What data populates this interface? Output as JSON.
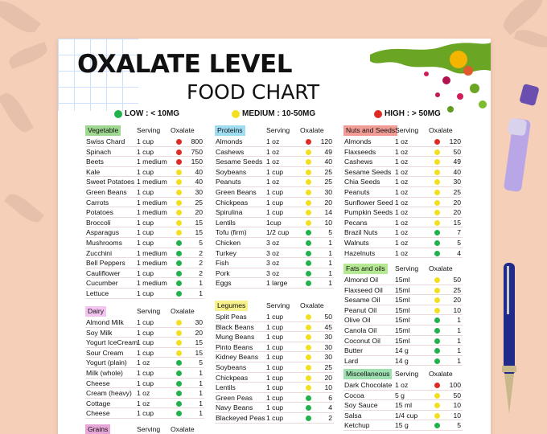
{
  "title": {
    "line1": "OXALATE LEVEL",
    "line2": "FOOD CHART"
  },
  "legend": [
    {
      "label": "LOW : < 10MG",
      "color": "#22b24c"
    },
    {
      "label": "MEDIUM : 10-50MG",
      "color": "#f2e020"
    },
    {
      "label": "HIGH : > 50MG",
      "color": "#e02a24"
    }
  ],
  "colors": {
    "low": "#22b24c",
    "medium": "#f2e020",
    "high": "#e02a24"
  },
  "sections": [
    {
      "id": "vegetable",
      "category": "Vegetable",
      "cat_color": "#9fd890",
      "serving_label": "Serving",
      "oxalate_label": "Oxalate",
      "rows": [
        {
          "name": "Swiss Chard",
          "serving": "1 cup",
          "value": "800",
          "level": "high"
        },
        {
          "name": "Spinach",
          "serving": "1 cup",
          "value": "750",
          "level": "high"
        },
        {
          "name": "Beets",
          "serving": "1 medium",
          "value": "150",
          "level": "high"
        },
        {
          "name": "Kale",
          "serving": "1 cup",
          "value": "40",
          "level": "medium"
        },
        {
          "name": "Sweet Potatoes",
          "serving": "1 medium",
          "value": "40",
          "level": "medium"
        },
        {
          "name": "Green Beans",
          "serving": "1 cup",
          "value": "30",
          "level": "medium"
        },
        {
          "name": "Carrots",
          "serving": "1 medium",
          "value": "25",
          "level": "medium"
        },
        {
          "name": "Potatoes",
          "serving": "1 medium",
          "value": "20",
          "level": "medium"
        },
        {
          "name": "Broccoli",
          "serving": "1 cup",
          "value": "15",
          "level": "medium"
        },
        {
          "name": "Asparagus",
          "serving": "1 cup",
          "value": "15",
          "level": "medium"
        },
        {
          "name": "Mushrooms",
          "serving": "1 cup",
          "value": "5",
          "level": "low"
        },
        {
          "name": "Zucchini",
          "serving": "1 medium",
          "value": "2",
          "level": "low"
        },
        {
          "name": "Bell Peppers",
          "serving": "1 medium",
          "value": "2",
          "level": "low"
        },
        {
          "name": "Cauliflower",
          "serving": "1 cup",
          "value": "2",
          "level": "low"
        },
        {
          "name": "Cucumber",
          "serving": "1 medium",
          "value": "1",
          "level": "low"
        },
        {
          "name": "Lettuce",
          "serving": "1 cup",
          "value": "1",
          "level": "low"
        }
      ]
    },
    {
      "id": "dairy",
      "category": "Dairy",
      "cat_color": "#f3c4f0",
      "serving_label": "Serving",
      "oxalate_label": "Oxalate",
      "rows": [
        {
          "name": "Almond Milk",
          "serving": "1 cup",
          "value": "30",
          "level": "medium"
        },
        {
          "name": "Soy Milk",
          "serving": "1 cup",
          "value": "20",
          "level": "medium"
        },
        {
          "name": "Yogurt IceCream",
          "serving": "1 cup",
          "value": "15",
          "level": "medium"
        },
        {
          "name": "Sour Cream",
          "serving": "1 cup",
          "value": "15",
          "level": "medium"
        },
        {
          "name": "Yogurt (plain)",
          "serving": "1 oz",
          "value": "5",
          "level": "low"
        },
        {
          "name": "Milk (whole)",
          "serving": "1 cup",
          "value": "1",
          "level": "low"
        },
        {
          "name": "Cheese",
          "serving": "1 cup",
          "value": "1",
          "level": "low"
        },
        {
          "name": "Cream (heavy)",
          "serving": "1 oz",
          "value": "1",
          "level": "low"
        },
        {
          "name": "Cottage",
          "serving": "1 oz",
          "value": "1",
          "level": "low"
        },
        {
          "name": "Cheese",
          "serving": "1 cup",
          "value": "1",
          "level": "low"
        }
      ]
    },
    {
      "id": "grains",
      "category": "Grains",
      "cat_color": "#e7a6d8",
      "serving_label": "Serving",
      "oxalate_label": "Oxalate",
      "rows": []
    },
    {
      "id": "proteins",
      "category": "Proteins",
      "cat_color": "#9fdcf2",
      "serving_label": "Serving",
      "oxalate_label": "Oxalate",
      "rows": [
        {
          "name": "Almonds",
          "serving": "1 oz",
          "value": "120",
          "level": "high"
        },
        {
          "name": "Cashews",
          "serving": "1 oz",
          "value": "49",
          "level": "medium"
        },
        {
          "name": "Sesame Seeds",
          "serving": "1 oz",
          "value": "40",
          "level": "medium"
        },
        {
          "name": "Soybeans",
          "serving": "1 cup",
          "value": "25",
          "level": "medium"
        },
        {
          "name": "Peanuts",
          "serving": "1 oz",
          "value": "25",
          "level": "medium"
        },
        {
          "name": "Green Beans",
          "serving": "1 cup",
          "value": "30",
          "level": "medium"
        },
        {
          "name": "Chickpeas",
          "serving": "1 cup",
          "value": "20",
          "level": "medium"
        },
        {
          "name": "Spirulina",
          "serving": "1 cup",
          "value": "14",
          "level": "medium"
        },
        {
          "name": "Lentils",
          "serving": "1cup",
          "value": "10",
          "level": "medium"
        },
        {
          "name": "Tofu (firm)",
          "serving": "1/2 cup",
          "value": "5",
          "level": "low"
        },
        {
          "name": "Chicken",
          "serving": "3 oz",
          "value": "1",
          "level": "low"
        },
        {
          "name": "Turkey",
          "serving": "3 oz",
          "value": "1",
          "level": "low"
        },
        {
          "name": "Fish",
          "serving": "3 oz",
          "value": "1",
          "level": "low"
        },
        {
          "name": "Pork",
          "serving": "3 oz",
          "value": "1",
          "level": "low"
        },
        {
          "name": "Eggs",
          "serving": "1 large",
          "value": "1",
          "level": "low"
        }
      ]
    },
    {
      "id": "legumes",
      "category": "Legumes",
      "cat_color": "#f8f08a",
      "serving_label": "Serving",
      "oxalate_label": "Oxalate",
      "rows": [
        {
          "name": "Split Peas",
          "serving": "1 cup",
          "value": "50",
          "level": "medium"
        },
        {
          "name": "Black Beans",
          "serving": "1 cup",
          "value": "45",
          "level": "medium"
        },
        {
          "name": "Mung Beans",
          "serving": "1 cup",
          "value": "30",
          "level": "medium"
        },
        {
          "name": "Pinto Beans",
          "serving": "1 cup",
          "value": "30",
          "level": "medium"
        },
        {
          "name": "Kidney Beans",
          "serving": "1 cup",
          "value": "30",
          "level": "medium"
        },
        {
          "name": "Soybeans",
          "serving": "1 cup",
          "value": "25",
          "level": "medium"
        },
        {
          "name": "Chickpeas",
          "serving": "1 cup",
          "value": "20",
          "level": "medium"
        },
        {
          "name": "Lentils",
          "serving": "1 cup",
          "value": "10",
          "level": "medium"
        },
        {
          "name": "Green Peas",
          "serving": "1 cup",
          "value": "6",
          "level": "low"
        },
        {
          "name": "Navy Beans",
          "serving": "1 cup",
          "value": "4",
          "level": "low"
        },
        {
          "name": "Blackeyed Peas",
          "serving": "1 cup",
          "value": "2",
          "level": "low"
        }
      ]
    },
    {
      "id": "nuts",
      "category": "Nuts and Seeds",
      "cat_color": "#f29c96",
      "serving_label": "Serving",
      "oxalate_label": "Oxalate",
      "rows": [
        {
          "name": "Almonds",
          "serving": "1 oz",
          "value": "120",
          "level": "high"
        },
        {
          "name": "Flaxseeds",
          "serving": "1 oz",
          "value": "50",
          "level": "medium"
        },
        {
          "name": "Cashews",
          "serving": "1 oz",
          "value": "49",
          "level": "medium"
        },
        {
          "name": "Sesame Seeds",
          "serving": "1 oz",
          "value": "40",
          "level": "medium"
        },
        {
          "name": "Chia Seeds",
          "serving": "1 oz",
          "value": "30",
          "level": "medium"
        },
        {
          "name": "Peanuts",
          "serving": "1 oz",
          "value": "25",
          "level": "medium"
        },
        {
          "name": "Sunflower Seed",
          "serving": "1 oz",
          "value": "20",
          "level": "medium"
        },
        {
          "name": "Pumpkin Seeds",
          "serving": "1 oz",
          "value": "20",
          "level": "medium"
        },
        {
          "name": "Pecans",
          "serving": "1 oz",
          "value": "15",
          "level": "medium"
        },
        {
          "name": "Brazil Nuts",
          "serving": "1 oz",
          "value": "7",
          "level": "low"
        },
        {
          "name": "Walnuts",
          "serving": "1 oz",
          "value": "5",
          "level": "low"
        },
        {
          "name": "Hazelnuts",
          "serving": "1 oz",
          "value": "4",
          "level": "low"
        }
      ]
    },
    {
      "id": "fats",
      "category": "Fats and oils",
      "cat_color": "#b4e892",
      "serving_label": "Serving",
      "oxalate_label": "Oxalate",
      "rows": [
        {
          "name": "Almond Oil",
          "serving": "15ml",
          "value": "50",
          "level": "medium"
        },
        {
          "name": "Flaxseed Oil",
          "serving": "15ml",
          "value": "25",
          "level": "medium"
        },
        {
          "name": "Sesame Oil",
          "serving": "15ml",
          "value": "20",
          "level": "medium"
        },
        {
          "name": "Peanut Oil",
          "serving": "15ml",
          "value": "10",
          "level": "medium"
        },
        {
          "name": "Olive Oil",
          "serving": "15ml",
          "value": "1",
          "level": "low"
        },
        {
          "name": "Canola Oil",
          "serving": "15ml",
          "value": "1",
          "level": "low"
        },
        {
          "name": "Coconut Oil",
          "serving": "15ml",
          "value": "1",
          "level": "low"
        },
        {
          "name": "Butter",
          "serving": "14 g",
          "value": "1",
          "level": "low"
        },
        {
          "name": "Lard",
          "serving": "14 g",
          "value": "1",
          "level": "low"
        }
      ]
    },
    {
      "id": "misc",
      "category": "Miscellaneous",
      "cat_color": "#9fe0b0",
      "serving_label": "Serving",
      "oxalate_label": "Oxalate",
      "rows": [
        {
          "name": "Dark Chocolate",
          "serving": "1 oz",
          "value": "100",
          "level": "high"
        },
        {
          "name": "Cocoa",
          "serving": "5 g",
          "value": "50",
          "level": "medium"
        },
        {
          "name": "Soy Sauce",
          "serving": "15 ml",
          "value": "10",
          "level": "medium"
        },
        {
          "name": "Salsa",
          "serving": "1/4 cup",
          "value": "10",
          "level": "medium"
        },
        {
          "name": "Ketchup",
          "serving": "15 g",
          "value": "5",
          "level": "low"
        }
      ]
    }
  ]
}
